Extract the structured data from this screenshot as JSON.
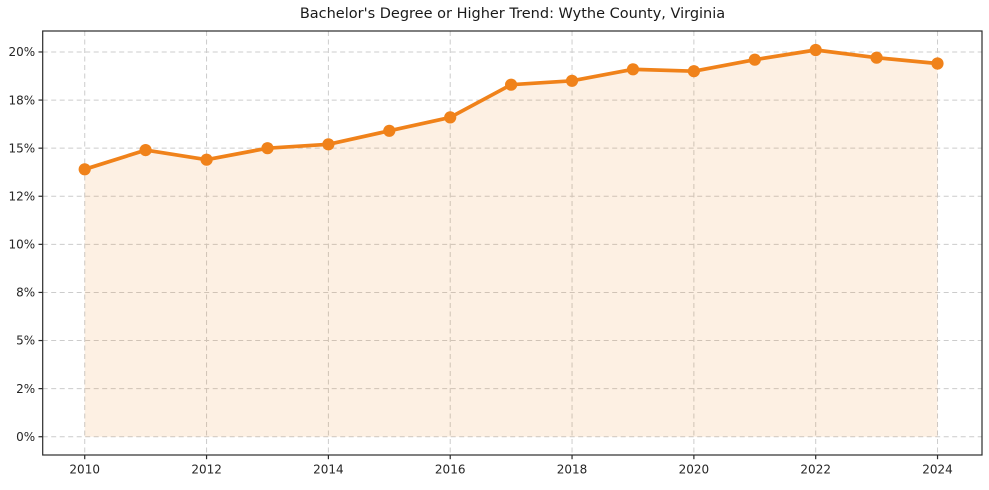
{
  "chart_data": {
    "type": "line",
    "title": "Bachelor's Degree or Higher Trend: Wythe County, Virginia",
    "x": [
      2010,
      2011,
      2012,
      2013,
      2014,
      2015,
      2016,
      2017,
      2018,
      2019,
      2020,
      2021,
      2022,
      2023,
      2024
    ],
    "series": [
      {
        "name": "Bachelor's Degree or Higher (%)",
        "values": [
          13.9,
          14.9,
          14.4,
          15.0,
          15.2,
          15.9,
          16.6,
          18.3,
          18.5,
          19.1,
          19.0,
          19.6,
          20.1,
          19.7,
          19.4
        ]
      }
    ],
    "unit": "%",
    "xlabel": "",
    "ylabel": "",
    "x_ticks": {
      "values": [
        2010,
        2012,
        2014,
        2016,
        2018,
        2020,
        2022,
        2024
      ],
      "labels": [
        "2010",
        "2012",
        "2014",
        "2016",
        "2018",
        "2020",
        "2022",
        "2024"
      ]
    },
    "y_ticks": {
      "values": [
        0,
        2.5,
        5,
        7.5,
        10,
        12.5,
        15,
        17.5,
        20
      ],
      "labels": [
        "0%",
        "2%",
        "5%",
        "8%",
        "10%",
        "12%",
        "15%",
        "18%",
        "20%"
      ]
    },
    "x_range": [
      2009.31,
      2024.73
    ],
    "y_range": [
      -0.95,
      21.09
    ],
    "grid": true,
    "legend": "none",
    "area_fill": true,
    "marker": "circle",
    "colors": {
      "line": "#f0821a",
      "marker": "#f0821a",
      "area_fill": "rgba(240,130,26,0.12)",
      "grid": "#cccccc",
      "axis": "#2b2b2b",
      "tick_text": "#262626",
      "title_text": "#1a1a1a",
      "background": "#ffffff"
    }
  }
}
